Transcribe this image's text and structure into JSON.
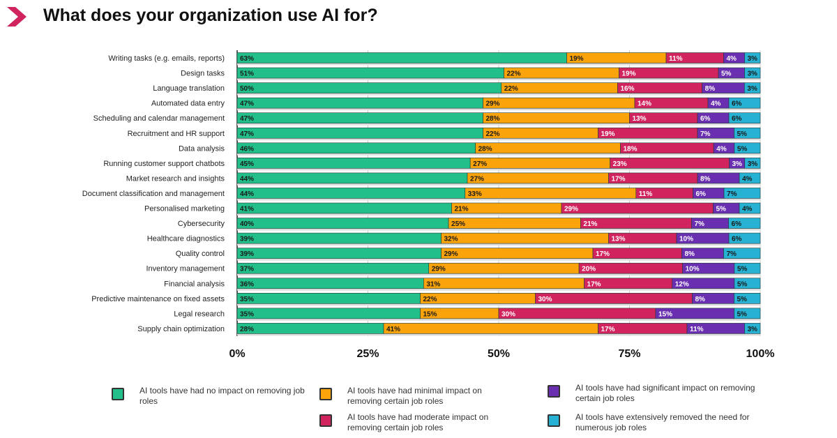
{
  "title": "What does your organization use AI for?",
  "colors": {
    "accent": "#d1245e"
  },
  "chart_data": {
    "type": "bar",
    "orientation": "horizontal",
    "stacked": true,
    "xlim": [
      0,
      100
    ],
    "xticks": [
      "0%",
      "25%",
      "50%",
      "75%",
      "100%"
    ],
    "grid": true,
    "legend_position": "bottom",
    "categories": [
      "Writing tasks (e.g. emails, reports)",
      "Design tasks",
      "Language translation",
      "Automated data entry",
      "Scheduling and calendar management",
      "Recruitment and HR support",
      "Data analysis",
      "Running customer support chatbots",
      "Market research and insights",
      "Document classification and management",
      "Personalised marketing",
      "Cybersecurity",
      "Healthcare diagnostics",
      "Quality control",
      "Inventory management",
      "Financial analysis",
      "Predictive maintenance on fixed assets",
      "Legal research",
      "Supply chain optimization"
    ],
    "series": [
      {
        "name": "AI tools have had no impact on removing job roles",
        "color": "#22bf8a",
        "label_color": "#1a1a1a",
        "values": [
          63,
          51,
          50,
          47,
          47,
          47,
          46,
          45,
          44,
          44,
          41,
          40,
          39,
          39,
          37,
          36,
          35,
          35,
          28
        ]
      },
      {
        "name": "AI tools have had minimal impact on removing certain job roles",
        "color": "#fba30a",
        "label_color": "#1a1a1a",
        "values": [
          19,
          22,
          22,
          29,
          28,
          22,
          28,
          27,
          27,
          33,
          21,
          25,
          32,
          29,
          29,
          31,
          22,
          15,
          41
        ]
      },
      {
        "name": "AI tools have had moderate impact on removing certain job roles",
        "color": "#d1245e",
        "label_color": "#ffffff",
        "values": [
          11,
          19,
          16,
          14,
          13,
          19,
          18,
          23,
          17,
          11,
          29,
          21,
          13,
          17,
          20,
          17,
          30,
          30,
          17
        ]
      },
      {
        "name": "AI tools have had significant impact on removing certain job roles",
        "color": "#6a2fb0",
        "label_color": "#ffffff",
        "values": [
          4,
          5,
          8,
          4,
          6,
          7,
          4,
          3,
          8,
          6,
          5,
          7,
          10,
          8,
          10,
          12,
          8,
          15,
          11
        ]
      },
      {
        "name": "AI tools have extensively removed the need for numerous job roles",
        "color": "#27b1d2",
        "label_color": "#1a1a1a",
        "values": [
          3,
          3,
          3,
          6,
          6,
          5,
          5,
          3,
          4,
          7,
          4,
          6,
          6,
          7,
          5,
          5,
          5,
          5,
          3
        ]
      }
    ]
  }
}
